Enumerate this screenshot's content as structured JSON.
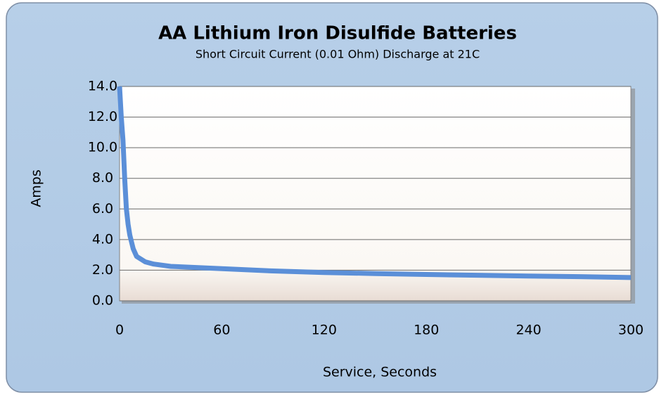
{
  "chart_data": {
    "type": "line",
    "title": "AA Lithium Iron Disulfide Batteries",
    "subtitle": "Short Circuit Current (0.01 Ohm) Discharge at 21C",
    "x_label": "Service, Seconds",
    "y_label": "Amps",
    "x": [
      0,
      1,
      2,
      3,
      4,
      5,
      6,
      8,
      10,
      15,
      20,
      30,
      60,
      90,
      120,
      150,
      180,
      210,
      240,
      270,
      300
    ],
    "series": [
      {
        "name": "Short Circuit Current",
        "color": "#5b8fd8",
        "values": [
          14,
          12,
          10.5,
          8,
          6,
          5,
          4.3,
          3.4,
          2.9,
          2.55,
          2.4,
          2.25,
          2.1,
          1.95,
          1.85,
          1.78,
          1.72,
          1.67,
          1.62,
          1.58,
          1.52
        ]
      }
    ],
    "xlim": [
      0,
      300
    ],
    "xticks": [
      0,
      60,
      120,
      180,
      240,
      300
    ],
    "ylim": [
      0,
      14
    ],
    "yticks": [
      {
        "value": 0,
        "label": "0.0"
      },
      {
        "value": 2,
        "label": "2.0"
      },
      {
        "value": 4,
        "label": "4.0"
      },
      {
        "value": 6,
        "label": "6.0"
      },
      {
        "value": 8,
        "label": "8.0"
      },
      {
        "value": 10,
        "label": "10.0"
      },
      {
        "value": 12,
        "label": "12.0"
      },
      {
        "value": 14,
        "label": "14.0"
      }
    ],
    "grid": true
  }
}
